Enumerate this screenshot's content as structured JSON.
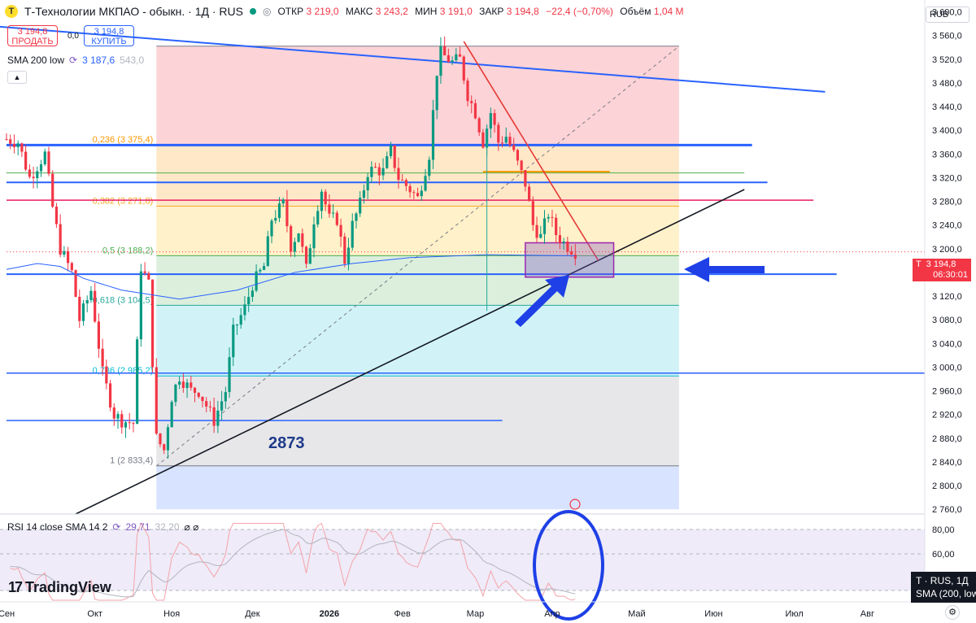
{
  "header": {
    "logo_letter": "T",
    "symbol": "Т-Технологии МКПАО - обыкн. · 1Д · RUS",
    "o_label": "ОТКР",
    "o": "3 219,0",
    "h_label": "МАКС",
    "h": "3 243,2",
    "l_label": "МИН",
    "l": "3 191,0",
    "c_label": "ЗАКР",
    "c": "3 194,8",
    "change": "−22,4 (−0,70%)",
    "vol_label": "Объём",
    "vol": "1,04 M",
    "eye": "◎"
  },
  "trade": {
    "sell_price": "3 194,8",
    "sell_label": "ПРОДАТЬ",
    "buy_price": "3 194,8",
    "buy_label": "КУПИТЬ",
    "spread": "0,0"
  },
  "indicator_sma": {
    "name": "SMA 200 low",
    "value": "3 187,6",
    "value2": "543,0"
  },
  "indicator_rsi": {
    "name": "RSI 14 close SMA 14 2",
    "rsi": "29,71",
    "sma": "32,20",
    "extras": "⌀ ⌀"
  },
  "currency": "RUB",
  "price_tag": {
    "label": "T",
    "value": "3 194,8",
    "countdown": "06:30:01"
  },
  "tooltip": {
    "line1": "T · RUS, 1Д",
    "line2": "SMA (200, low"
  },
  "brand": {
    "mark": "17",
    "name": "TradingView"
  },
  "annotation_text": "2873",
  "colors": {
    "up": "#089981",
    "down": "#f23645",
    "accent": "#2962ff"
  },
  "chart_data": {
    "type": "candlestick",
    "x_unit": "trading day index",
    "y_unit": "RUB",
    "ylim": [
      2752,
      3620
    ],
    "y_ticks": [
      2760,
      2800,
      2840,
      2880,
      2920,
      2960,
      3000,
      3040,
      3080,
      3120,
      3160,
      3200,
      3240,
      3280,
      3320,
      3360,
      3400,
      3440,
      3480,
      3520,
      3560,
      3600
    ],
    "y_tick_labels": [
      "2 760,0",
      "2 800,0",
      "2 840,0",
      "2 880,0",
      "2 920,0",
      "2 960,0",
      "3 000,0",
      "3 040,0",
      "3 080,0",
      "3 120,0",
      "3 160,0",
      "3 200,0",
      "3 240,0",
      "3 280,0",
      "3 320,0",
      "3 360,0",
      "3 400,0",
      "3 440,0",
      "3 480,0",
      "3 520,0",
      "3 560,0",
      "3 600,0"
    ],
    "x_labels": [
      "Сен",
      "Окт",
      "Ноя",
      "Дек",
      "2026",
      "Фев",
      "Мар",
      "Апр",
      "Май",
      "Июн",
      "Июл",
      "Авг"
    ],
    "x_label_day": [
      0,
      23,
      43,
      64,
      84,
      103,
      122,
      142,
      164,
      184,
      205,
      224
    ],
    "last_day": 148,
    "waypoints": [
      [
        0,
        3385
      ],
      [
        3,
        3380
      ],
      [
        6,
        3320
      ],
      [
        10,
        3360
      ],
      [
        12,
        3270
      ],
      [
        14,
        3200
      ],
      [
        17,
        3160
      ],
      [
        19,
        3080
      ],
      [
        22,
        3130
      ],
      [
        25,
        2990
      ],
      [
        28,
        2920
      ],
      [
        30,
        2910
      ],
      [
        33,
        2905
      ],
      [
        35,
        3170
      ],
      [
        37,
        3140
      ],
      [
        39,
        2880
      ],
      [
        41,
        2860
      ],
      [
        43,
        2950
      ],
      [
        45,
        2985
      ],
      [
        48,
        2960
      ],
      [
        50,
        2960
      ],
      [
        54,
        2910
      ],
      [
        57,
        2960
      ],
      [
        59,
        3060
      ],
      [
        62,
        3100
      ],
      [
        64,
        3140
      ],
      [
        67,
        3170
      ],
      [
        69,
        3250
      ],
      [
        72,
        3275
      ],
      [
        74,
        3205
      ],
      [
        76,
        3230
      ],
      [
        78,
        3165
      ],
      [
        80,
        3250
      ],
      [
        82,
        3300
      ],
      [
        84,
        3250
      ],
      [
        86,
        3250
      ],
      [
        88,
        3180
      ],
      [
        90,
        3240
      ],
      [
        92,
        3275
      ],
      [
        94,
        3330
      ],
      [
        96,
        3335
      ],
      [
        98,
        3330
      ],
      [
        100,
        3365
      ],
      [
        102,
        3320
      ],
      [
        105,
        3300
      ],
      [
        107,
        3285
      ],
      [
        110,
        3360
      ],
      [
        112,
        3500
      ],
      [
        113,
        3530
      ],
      [
        116,
        3515
      ],
      [
        118,
        3520
      ],
      [
        120,
        3460
      ],
      [
        122,
        3430
      ],
      [
        124,
        3380
      ],
      [
        126,
        3430
      ],
      [
        128,
        3380
      ],
      [
        130,
        3390
      ],
      [
        132,
        3360
      ],
      [
        135,
        3310
      ],
      [
        137,
        3240
      ],
      [
        139,
        3220
      ],
      [
        141,
        3260
      ],
      [
        143,
        3225
      ],
      [
        145,
        3210
      ],
      [
        148,
        3195
      ]
    ],
    "sma200_low": [
      [
        0,
        3165
      ],
      [
        8,
        3175
      ],
      [
        14,
        3170
      ],
      [
        20,
        3150
      ],
      [
        30,
        3130
      ],
      [
        45,
        3115
      ],
      [
        60,
        3130
      ],
      [
        75,
        3160
      ],
      [
        90,
        3175
      ],
      [
        105,
        3185
      ],
      [
        125,
        3190
      ],
      [
        148,
        3188
      ]
    ],
    "fib_levels": [
      {
        "ratio": "0,236",
        "price": 3375.4,
        "label": "0,236 (3 375,4)"
      },
      {
        "ratio": "0,382",
        "price": 3271.8,
        "label": "0,382 (3 271,8)"
      },
      {
        "ratio": "0,5",
        "price": 3188.2,
        "label": "0,5 (3 188,2)"
      },
      {
        "ratio": "0,618",
        "price": 3104.5,
        "label": "0,618 (3 104,5)"
      },
      {
        "ratio": "0,786",
        "price": 2985.2,
        "label": "0,786 (2 985,2)"
      },
      {
        "ratio": "1",
        "price": 2833.4,
        "label": "1 (2 833,4)"
      }
    ],
    "fib_top": 3542.0,
    "horizontal_levels": [
      3375,
      3312,
      3282,
      3157,
      2990,
      2910
    ],
    "rsi_last": 29.71,
    "rsi_sma_last": 32.2,
    "rsi_ticks": [
      60,
      80
    ],
    "rsi_tick_labels": [
      "60,00",
      "80,00"
    ]
  }
}
